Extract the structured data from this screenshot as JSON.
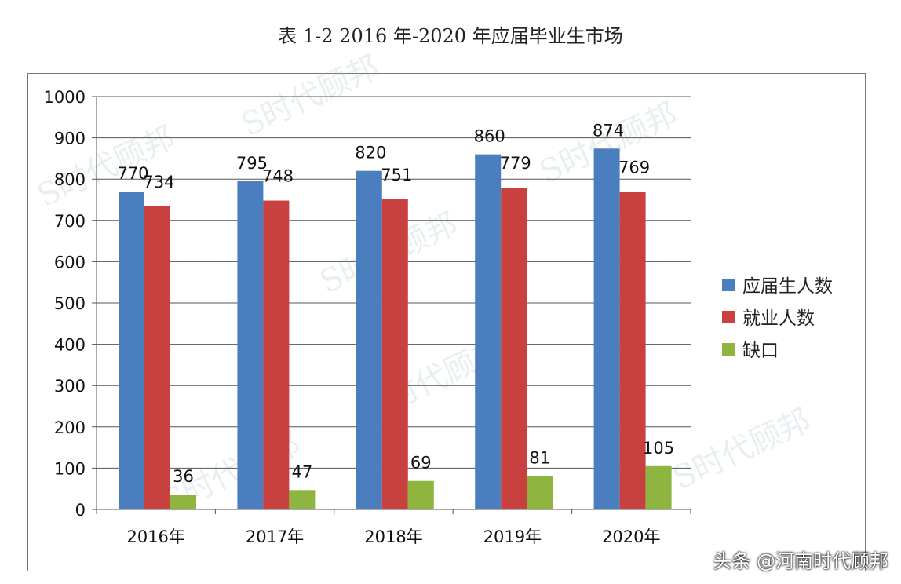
{
  "chart_data": {
    "type": "bar",
    "title": "表 1-2 2016 年-2020 年应届毕业生市场",
    "categories": [
      "2016年",
      "2017年",
      "2018年",
      "2019年",
      "2020年"
    ],
    "series": [
      {
        "name": "应届生人数",
        "color": "#4a7ebf",
        "values": [
          770,
          795,
          820,
          860,
          874
        ]
      },
      {
        "name": "就业人数",
        "color": "#c9413f",
        "values": [
          734,
          748,
          751,
          779,
          769
        ]
      },
      {
        "name": "缺口",
        "color": "#8db53f",
        "values": [
          36,
          47,
          69,
          81,
          105
        ]
      }
    ],
    "ylim": [
      0,
      1000
    ],
    "yticks": [
      0,
      100,
      200,
      300,
      400,
      500,
      600,
      700,
      800,
      900,
      1000
    ],
    "grid": true,
    "legend": "right",
    "xlabel": "",
    "ylabel": ""
  },
  "watermark": "时代顾邦",
  "credit": "头条 @河南时代顾邦"
}
